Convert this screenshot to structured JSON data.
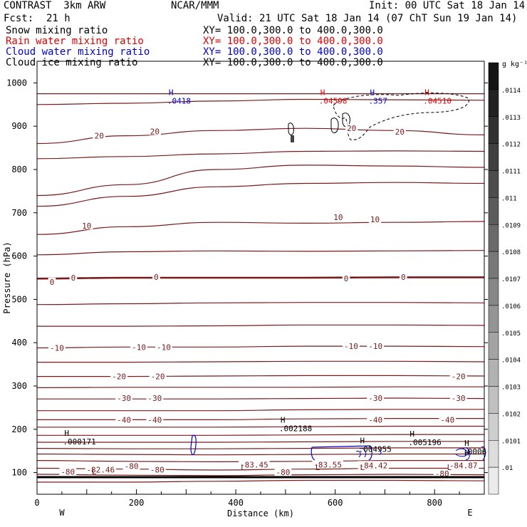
{
  "header": {
    "model": "CONTRAST  3km ARW",
    "org": "NCAR/MMM",
    "init": "Init: 00 UTC Sat 18 Jan 14",
    "fcst_label": "Fcst:",
    "fcst_value": "21 h",
    "valid": "Valid: 21 UTC Sat 18 Jan 14 (07 ChT Sun 19 Jan 14)",
    "fields": [
      {
        "name": "Snow mixing ratio",
        "xy": "XY= 100.0,300.0 to 400.0,300.0",
        "color": "#000000"
      },
      {
        "name": "Rain water mixing ratio",
        "xy": "XY= 100.0,300.0 to 400.0,300.0",
        "color": "#e00000"
      },
      {
        "name": "Cloud water mixing ratio",
        "xy": "XY= 100.0,300.0 to 400.0,300.0",
        "color": "#0000d0"
      },
      {
        "name": "Cloud ice mixing ratio",
        "xy": "XY= 100.0,300.0 to 400.0,300.0",
        "color": "#000000"
      }
    ]
  },
  "chart_data": {
    "type": "contour-cross-section",
    "xlabel": "Distance (km)",
    "ylabel": "Pressure (hPa)",
    "xlim": [
      0,
      900
    ],
    "ylim": [
      1050,
      50
    ],
    "x_ticks": [
      0,
      200,
      400,
      600,
      800
    ],
    "y_ticks": [
      100,
      200,
      300,
      400,
      500,
      600,
      700,
      800,
      900,
      1000
    ],
    "x_end_labels": {
      "left": "W",
      "right": "E"
    },
    "colorbar": {
      "unit": "g kg⁻¹",
      "labels": [
        ".0114",
        ".0113",
        ".0112",
        ".0111",
        ".011",
        ".0109",
        ".0108",
        ".0107",
        ".0106",
        ".0105",
        ".0104",
        ".0103",
        ".0102",
        ".0101",
        ".01"
      ]
    },
    "temperature_contours": [
      {
        "label": "-80",
        "p": [
          78,
          78,
          80,
          82,
          82,
          81
        ]
      },
      {
        "label": "",
        "p": [
          96,
          94,
          93,
          95,
          96,
          95
        ]
      },
      {
        "label": "",
        "p": [
          110,
          108,
          106,
          108,
          110,
          110
        ]
      },
      {
        "label": "",
        "p": [
          128,
          126,
          125,
          126,
          128,
          128
        ]
      },
      {
        "label": "",
        "p": [
          143,
          142,
          141,
          142,
          143,
          143
        ]
      },
      {
        "label": "",
        "p": [
          156,
          155,
          155,
          156,
          157,
          157
        ]
      },
      {
        "label": "",
        "p": [
          170,
          170,
          170,
          171,
          172,
          172
        ]
      },
      {
        "label": "",
        "p": [
          186,
          186,
          186,
          187,
          188,
          188
        ]
      },
      {
        "label": "",
        "p": [
          205,
          205,
          205,
          206,
          207,
          207
        ]
      },
      {
        "label": "-40",
        "p": [
          222,
          222,
          222,
          224,
          225,
          225
        ]
      },
      {
        "label": "",
        "p": [
          243,
          243,
          243,
          245,
          246,
          246
        ]
      },
      {
        "label": "-30",
        "p": [
          270,
          270,
          270,
          271,
          272,
          271
        ]
      },
      {
        "label": "",
        "p": [
          296,
          297,
          297,
          297,
          298,
          298
        ]
      },
      {
        "label": "-20",
        "p": [
          322,
          322,
          323,
          324,
          324,
          323
        ]
      },
      {
        "label": "",
        "p": [
          355,
          355,
          356,
          357,
          357,
          356
        ]
      },
      {
        "label": "-10",
        "p": [
          388,
          390,
          390,
          392,
          392,
          391
        ]
      },
      {
        "label": "",
        "p": [
          438,
          438,
          439,
          441,
          441,
          440
        ]
      },
      {
        "label": "",
        "p": [
          488,
          490,
          492,
          493,
          493,
          492
        ]
      },
      {
        "label": "0",
        "p": [
          548,
          550,
          550,
          550,
          551,
          551
        ]
      },
      {
        "label": "",
        "p": [
          603,
          610,
          612,
          611,
          612,
          613
        ]
      },
      {
        "label": "10",
        "p": [
          650,
          668,
          678,
          676,
          678,
          680
        ]
      },
      {
        "label": "",
        "p": [
          715,
          738,
          760,
          768,
          770,
          768
        ]
      },
      {
        "label": "",
        "p": [
          740,
          765,
          800,
          810,
          808,
          805
        ]
      },
      {
        "label": "",
        "p": [
          825,
          830,
          836,
          842,
          843,
          842
        ]
      },
      {
        "label": "20",
        "p": [
          860,
          878,
          890,
          895,
          890,
          880
        ]
      },
      {
        "label": "",
        "p": [
          950,
          953,
          958,
          962,
          961,
          960
        ]
      },
      {
        "label": "",
        "p": [
          975,
          975,
          975,
          975,
          975,
          975
        ]
      }
    ],
    "contour_labels": [
      {
        "text": "-80",
        "x": 62,
        "p": 102
      },
      {
        "text": "-82.46",
        "x": 128,
        "p": 107
      },
      {
        "text": "-80",
        "x": 190,
        "p": 115
      },
      {
        "text": "-80",
        "x": 242,
        "p": 107
      },
      {
        "text": "-83.45",
        "x": 437,
        "p": 118
      },
      {
        "text": "-80",
        "x": 495,
        "p": 101
      },
      {
        "text": "-83.55",
        "x": 585,
        "p": 118
      },
      {
        "text": "-84.42",
        "x": 677,
        "p": 117
      },
      {
        "text": "-80",
        "x": 815,
        "p": 98
      },
      {
        "text": "-84.87",
        "x": 858,
        "p": 117
      },
      {
        "text": "-40",
        "x": 175,
        "p": 222
      },
      {
        "text": "-40",
        "x": 237,
        "p": 222
      },
      {
        "text": "-40",
        "x": 681,
        "p": 222
      },
      {
        "text": "-40",
        "x": 826,
        "p": 222
      },
      {
        "text": "-30",
        "x": 175,
        "p": 272
      },
      {
        "text": "-30",
        "x": 237,
        "p": 272
      },
      {
        "text": "-30",
        "x": 681,
        "p": 272
      },
      {
        "text": "-30",
        "x": 848,
        "p": 272
      },
      {
        "text": "-20",
        "x": 165,
        "p": 322
      },
      {
        "text": "-20",
        "x": 243,
        "p": 322
      },
      {
        "text": "-20",
        "x": 848,
        "p": 322
      },
      {
        "text": "-10",
        "x": 40,
        "p": 388
      },
      {
        "text": "-10",
        "x": 205,
        "p": 390
      },
      {
        "text": "-10",
        "x": 255,
        "p": 390
      },
      {
        "text": "-10",
        "x": 632,
        "p": 392
      },
      {
        "text": "-10",
        "x": 681,
        "p": 392
      },
      {
        "text": "0",
        "x": 30,
        "p": 540
      },
      {
        "text": "0",
        "x": 73,
        "p": 550
      },
      {
        "text": "0",
        "x": 240,
        "p": 552
      },
      {
        "text": "0",
        "x": 622,
        "p": 548
      },
      {
        "text": "0",
        "x": 737,
        "p": 552
      },
      {
        "text": "10",
        "x": 100,
        "p": 670
      },
      {
        "text": "10",
        "x": 606,
        "p": 690
      },
      {
        "text": "10",
        "x": 680,
        "p": 685
      },
      {
        "text": "20",
        "x": 125,
        "p": 878
      },
      {
        "text": "20",
        "x": 237,
        "p": 888
      },
      {
        "text": "20",
        "x": 633,
        "p": 895
      },
      {
        "text": "20",
        "x": 730,
        "p": 887
      }
    ],
    "extrema": [
      {
        "type": "L",
        "value": "",
        "x": 110,
        "p": 96,
        "color": "#7a1a1a"
      },
      {
        "type": "L",
        "value": "",
        "x": 410,
        "p": 106,
        "color": "#7a1a1a"
      },
      {
        "type": "L",
        "value": "",
        "x": 560,
        "p": 106,
        "color": "#7a1a1a"
      },
      {
        "type": "L",
        "value": "",
        "x": 650,
        "p": 106,
        "color": "#7a1a1a"
      },
      {
        "type": "L",
        "value": "",
        "x": 825,
        "p": 106,
        "color": "#7a1a1a"
      },
      {
        "type": "H",
        "value": "",
        "x": 860,
        "p": 140,
        "color": "#000000"
      },
      {
        "type": "H",
        "value": ".0006",
        "x": 860,
        "p": 162,
        "color": "#000000"
      },
      {
        "type": "H",
        "value": ".000171",
        "x": 55,
        "p": 185,
        "color": "#000000"
      },
      {
        "type": "H",
        "value": ".002188",
        "x": 490,
        "p": 215,
        "color": "#000000"
      },
      {
        "type": "H",
        "value": ".004955",
        "x": 650,
        "p": 168,
        "color": "#000000"
      },
      {
        "type": "H",
        "value": ".005196",
        "x": 750,
        "p": 183,
        "color": "#000000"
      },
      {
        "type": "H",
        "value": ".0418",
        "x": 265,
        "p": 972,
        "color": "#0000d0"
      },
      {
        "type": "H",
        "value": ".04598",
        "x": 570,
        "p": 972,
        "color": "#e00000"
      },
      {
        "type": "H",
        "value": ".357",
        "x": 670,
        "p": 972,
        "color": "#0000d0"
      },
      {
        "type": "H",
        "value": ".04510",
        "x": 780,
        "p": 972,
        "color": "#e00000"
      }
    ]
  }
}
